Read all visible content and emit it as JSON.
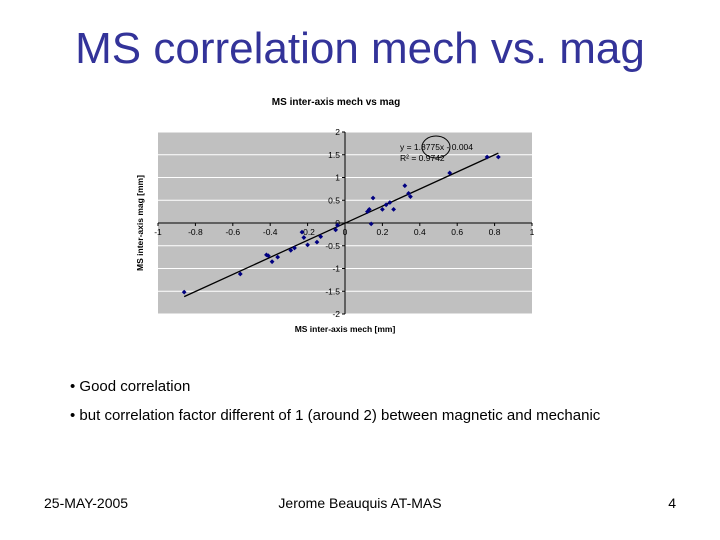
{
  "slide": {
    "title": "MS correlation mech vs. mag",
    "bullets": [
      "• Good correlation",
      "• but correlation factor different of 1 (around 2) between magnetic and mechanic"
    ],
    "footer": {
      "date": "25-MAY-2005",
      "author": "Jerome Beauquis AT-MAS",
      "page": "4"
    }
  },
  "chart_data": {
    "type": "scatter",
    "title": "MS inter-axis mech vs mag",
    "xlabel": "MS inter-axis mech [mm]",
    "ylabel": "MS inter-axis mag [mm]",
    "xlim": [
      -1,
      1
    ],
    "ylim": [
      -2,
      2
    ],
    "x_ticks": [
      "-1",
      "-0.8",
      "-0.6",
      "-0.4",
      "-0.2",
      "0",
      "0.2",
      "0.4",
      "0.6",
      "0.8",
      "1"
    ],
    "y_ticks": [
      "2",
      "1.5",
      "1",
      "0.5",
      "0",
      "-0.5",
      "-1",
      "-1.5",
      "-2"
    ],
    "grid": true,
    "points": [
      [
        -0.86,
        -1.52
      ],
      [
        -0.56,
        -1.12
      ],
      [
        -0.42,
        -0.7
      ],
      [
        -0.41,
        -0.72
      ],
      [
        -0.39,
        -0.85
      ],
      [
        -0.36,
        -0.75
      ],
      [
        -0.29,
        -0.6
      ],
      [
        -0.27,
        -0.55
      ],
      [
        -0.23,
        -0.2
      ],
      [
        -0.22,
        -0.32
      ],
      [
        -0.2,
        -0.48
      ],
      [
        -0.15,
        -0.42
      ],
      [
        -0.13,
        -0.3
      ],
      [
        -0.05,
        -0.15
      ],
      [
        -0.04,
        -0.05
      ],
      [
        0.12,
        0.25
      ],
      [
        0.13,
        0.3
      ],
      [
        0.15,
        0.55
      ],
      [
        0.14,
        -0.02
      ],
      [
        0.2,
        0.3
      ],
      [
        0.22,
        0.4
      ],
      [
        0.24,
        0.45
      ],
      [
        0.26,
        0.3
      ],
      [
        0.32,
        0.82
      ],
      [
        0.34,
        0.65
      ],
      [
        0.35,
        0.58
      ],
      [
        0.56,
        1.1
      ],
      [
        0.76,
        1.45
      ],
      [
        0.82,
        1.45
      ]
    ],
    "trendline": {
      "slope": 1.8775,
      "intercept": -0.004,
      "x_range": [
        -0.86,
        0.82
      ]
    },
    "annotations": [
      "y = 1.8775x - 0.004",
      "R² = 0.9742"
    ],
    "colors": {
      "plot_bg": "#c0c0c0",
      "point": "#000080",
      "title": "#333399"
    }
  }
}
